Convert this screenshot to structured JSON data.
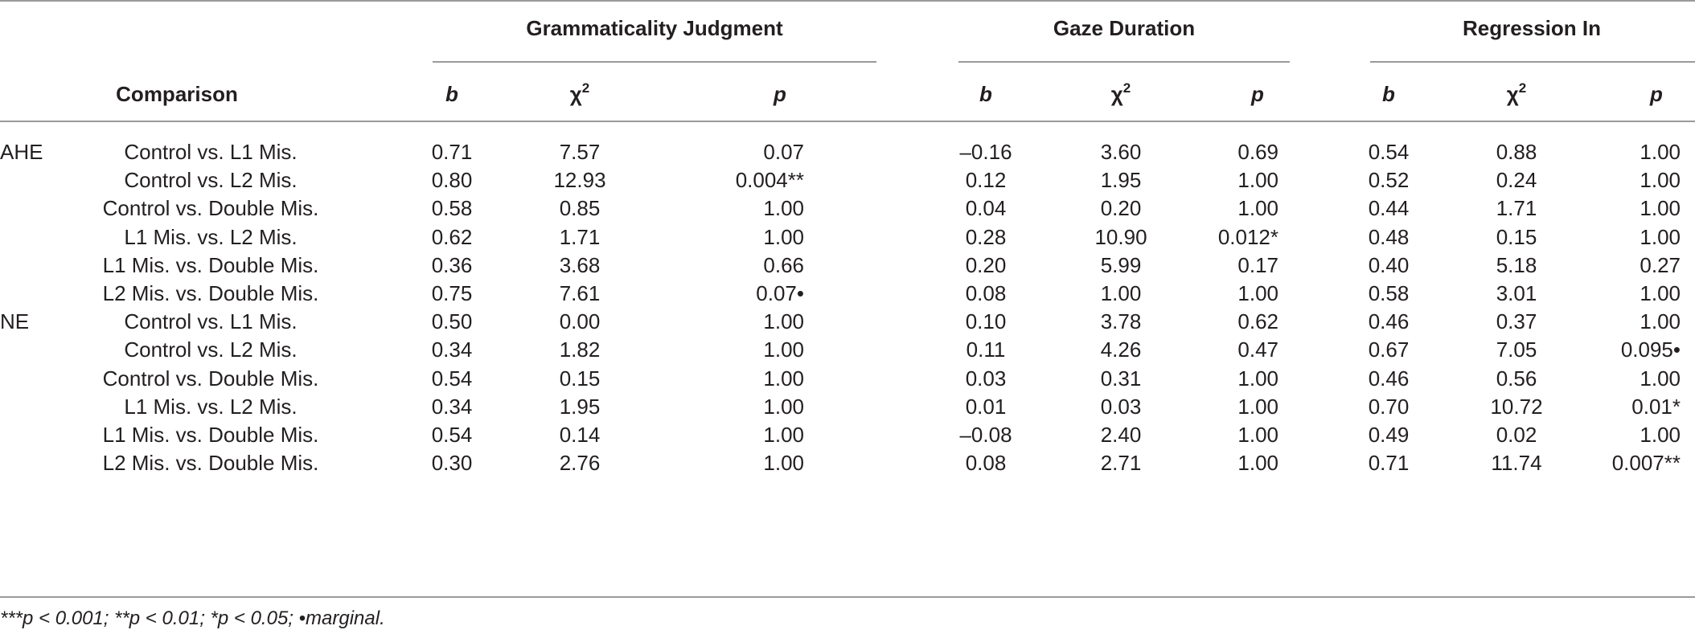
{
  "header": {
    "groups": [
      "Grammaticality Judgment",
      "Gaze Duration",
      "Regression In"
    ],
    "comparison_label": "Comparison",
    "sub_b": "b",
    "sub_chi": "χ",
    "sub_chi_sup": "2",
    "sub_p": "p"
  },
  "rows": [
    {
      "group": "AHE",
      "comparison": "Control vs. L1 Mis.",
      "gj_b": "0.71",
      "gj_chi": "7.57",
      "gj_p": "0.07",
      "gd_b": "–0.16",
      "gd_chi": "3.60",
      "gd_p": "0.69",
      "ri_b": "0.54",
      "ri_chi": "0.88",
      "ri_p": "1.00"
    },
    {
      "group": "",
      "comparison": "Control vs. L2 Mis.",
      "gj_b": "0.80",
      "gj_chi": "12.93",
      "gj_p": "0.004**",
      "gd_b": "0.12",
      "gd_chi": "1.95",
      "gd_p": "1.00",
      "ri_b": "0.52",
      "ri_chi": "0.24",
      "ri_p": "1.00"
    },
    {
      "group": "",
      "comparison": "Control vs. Double Mis.",
      "gj_b": "0.58",
      "gj_chi": "0.85",
      "gj_p": "1.00",
      "gd_b": "0.04",
      "gd_chi": "0.20",
      "gd_p": "1.00",
      "ri_b": "0.44",
      "ri_chi": "1.71",
      "ri_p": "1.00"
    },
    {
      "group": "",
      "comparison": "L1 Mis. vs. L2 Mis.",
      "gj_b": "0.62",
      "gj_chi": "1.71",
      "gj_p": "1.00",
      "gd_b": "0.28",
      "gd_chi": "10.90",
      "gd_p": "0.012*",
      "ri_b": "0.48",
      "ri_chi": "0.15",
      "ri_p": "1.00"
    },
    {
      "group": "",
      "comparison": "L1 Mis. vs. Double Mis.",
      "gj_b": "0.36",
      "gj_chi": "3.68",
      "gj_p": "0.66",
      "gd_b": "0.20",
      "gd_chi": "5.99",
      "gd_p": "0.17",
      "ri_b": "0.40",
      "ri_chi": "5.18",
      "ri_p": "0.27"
    },
    {
      "group": "",
      "comparison": "L2 Mis. vs. Double Mis.",
      "gj_b": "0.75",
      "gj_chi": "7.61",
      "gj_p": "0.07•",
      "gd_b": "0.08",
      "gd_chi": "1.00",
      "gd_p": "1.00",
      "ri_b": "0.58",
      "ri_chi": "3.01",
      "ri_p": "1.00"
    },
    {
      "group": "NE",
      "comparison": "Control vs. L1 Mis.",
      "gj_b": "0.50",
      "gj_chi": "0.00",
      "gj_p": "1.00",
      "gd_b": "0.10",
      "gd_chi": "3.78",
      "gd_p": "0.62",
      "ri_b": "0.46",
      "ri_chi": "0.37",
      "ri_p": "1.00"
    },
    {
      "group": "",
      "comparison": "Control vs. L2 Mis.",
      "gj_b": "0.34",
      "gj_chi": "1.82",
      "gj_p": "1.00",
      "gd_b": "0.11",
      "gd_chi": "4.26",
      "gd_p": "0.47",
      "ri_b": "0.67",
      "ri_chi": "7.05",
      "ri_p": "0.095•"
    },
    {
      "group": "",
      "comparison": "Control vs. Double Mis.",
      "gj_b": "0.54",
      "gj_chi": "0.15",
      "gj_p": "1.00",
      "gd_b": "0.03",
      "gd_chi": "0.31",
      "gd_p": "1.00",
      "ri_b": "0.46",
      "ri_chi": "0.56",
      "ri_p": "1.00"
    },
    {
      "group": "",
      "comparison": "L1 Mis. vs. L2 Mis.",
      "gj_b": "0.34",
      "gj_chi": "1.95",
      "gj_p": "1.00",
      "gd_b": "0.01",
      "gd_chi": "0.03",
      "gd_p": "1.00",
      "ri_b": "0.70",
      "ri_chi": "10.72",
      "ri_p": "0.01*"
    },
    {
      "group": "",
      "comparison": "L1 Mis. vs. Double Mis.",
      "gj_b": "0.54",
      "gj_chi": "0.14",
      "gj_p": "1.00",
      "gd_b": "–0.08",
      "gd_chi": "2.40",
      "gd_p": "1.00",
      "ri_b": "0.49",
      "ri_chi": "0.02",
      "ri_p": "1.00"
    },
    {
      "group": "",
      "comparison": "L2 Mis. vs. Double Mis.",
      "gj_b": "0.30",
      "gj_chi": "2.76",
      "gj_p": "1.00",
      "gd_b": "0.08",
      "gd_chi": "2.71",
      "gd_p": "1.00",
      "ri_b": "0.71",
      "ri_chi": "11.74",
      "ri_p": "0.007**"
    }
  ],
  "footnote": "***p < 0.001; **p < 0.01; *p < 0.05; •marginal."
}
